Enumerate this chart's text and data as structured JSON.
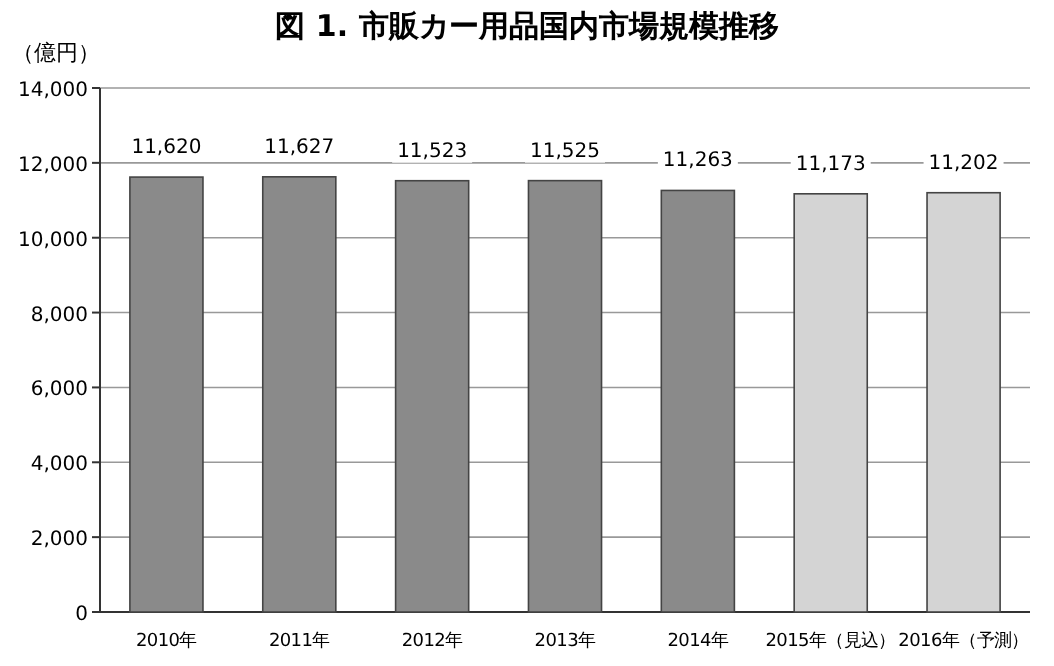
{
  "chart_data": {
    "type": "bar",
    "title": "図 1. 市販カー用品国内市場規模推移",
    "ylabel": "（億円）",
    "categories": [
      "2010年",
      "2011年",
      "2012年",
      "2013年",
      "2014年",
      "2015年（見込）",
      "2016年（予測）"
    ],
    "values": [
      11620,
      11627,
      11523,
      11525,
      11263,
      11173,
      11202
    ],
    "colors": [
      "#8a8a8a",
      "#8a8a8a",
      "#8a8a8a",
      "#8a8a8a",
      "#8a8a8a",
      "#d4d4d4",
      "#d4d4d4"
    ],
    "value_labels": [
      "11,620",
      "11,627",
      "11,523",
      "11,525",
      "11,263",
      "11,173",
      "11,202"
    ],
    "ylim": [
      0,
      14000
    ],
    "yticks": [
      {
        "value": 0,
        "label": "0"
      },
      {
        "value": 2000,
        "label": "2,000"
      },
      {
        "value": 4000,
        "label": "4,000"
      },
      {
        "value": 6000,
        "label": "6,000"
      },
      {
        "value": 8000,
        "label": "8,000"
      },
      {
        "value": 10000,
        "label": "10,000"
      },
      {
        "value": 12000,
        "label": "12,000"
      },
      {
        "value": 14000,
        "label": "14,000"
      }
    ],
    "grid": "y"
  }
}
